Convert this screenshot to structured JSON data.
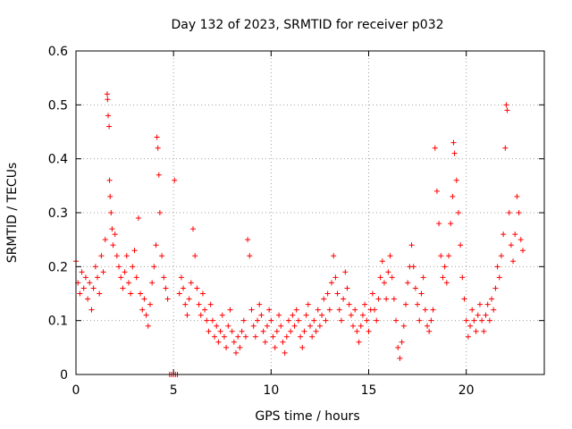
{
  "chart_data": {
    "type": "scatter",
    "title": "Day 132 of 2023, SRMTID for receiver p032",
    "xlabel": "GPS time / hours",
    "ylabel": "SRMTID / TECUs",
    "xlim": [
      0,
      24
    ],
    "ylim": [
      0,
      0.6
    ],
    "x_ticks": [
      0,
      5,
      10,
      15,
      20
    ],
    "x_tick_labels": [
      "0",
      "5",
      "10",
      "15",
      "20"
    ],
    "y_ticks": [
      0,
      0.1,
      0.2,
      0.3,
      0.4,
      0.5,
      0.6
    ],
    "y_tick_labels": [
      "0",
      "0.1",
      "0.2",
      "0.3",
      "0.4",
      "0.5",
      "0.6"
    ],
    "grid": true,
    "marker": "+",
    "color": "#ff0000",
    "series": [
      {
        "name": "SRMTID",
        "points": [
          [
            0.0,
            0.21
          ],
          [
            0.1,
            0.17
          ],
          [
            0.2,
            0.15
          ],
          [
            0.3,
            0.19
          ],
          [
            0.4,
            0.16
          ],
          [
            0.5,
            0.18
          ],
          [
            0.6,
            0.14
          ],
          [
            0.7,
            0.17
          ],
          [
            0.8,
            0.12
          ],
          [
            0.9,
            0.16
          ],
          [
            1.0,
            0.2
          ],
          [
            1.1,
            0.18
          ],
          [
            1.2,
            0.15
          ],
          [
            1.3,
            0.22
          ],
          [
            1.4,
            0.19
          ],
          [
            1.5,
            0.25
          ],
          [
            1.6,
            0.52
          ],
          [
            1.62,
            0.51
          ],
          [
            1.65,
            0.48
          ],
          [
            1.7,
            0.46
          ],
          [
            1.72,
            0.36
          ],
          [
            1.75,
            0.33
          ],
          [
            1.8,
            0.3
          ],
          [
            1.85,
            0.27
          ],
          [
            1.9,
            0.24
          ],
          [
            2.0,
            0.26
          ],
          [
            2.1,
            0.22
          ],
          [
            2.2,
            0.2
          ],
          [
            2.3,
            0.18
          ],
          [
            2.4,
            0.16
          ],
          [
            2.5,
            0.19
          ],
          [
            2.6,
            0.22
          ],
          [
            2.7,
            0.17
          ],
          [
            2.8,
            0.15
          ],
          [
            2.9,
            0.2
          ],
          [
            3.0,
            0.23
          ],
          [
            3.1,
            0.18
          ],
          [
            3.2,
            0.29
          ],
          [
            3.3,
            0.15
          ],
          [
            3.4,
            0.12
          ],
          [
            3.5,
            0.14
          ],
          [
            3.6,
            0.11
          ],
          [
            3.7,
            0.09
          ],
          [
            3.8,
            0.13
          ],
          [
            3.9,
            0.17
          ],
          [
            4.0,
            0.2
          ],
          [
            4.1,
            0.24
          ],
          [
            4.15,
            0.44
          ],
          [
            4.2,
            0.42
          ],
          [
            4.25,
            0.37
          ],
          [
            4.3,
            0.3
          ],
          [
            4.4,
            0.22
          ],
          [
            4.5,
            0.18
          ],
          [
            4.6,
            0.16
          ],
          [
            4.7,
            0.14
          ],
          [
            4.8,
            0.0
          ],
          [
            4.9,
            0.0
          ],
          [
            5.0,
            0.0
          ],
          [
            5.05,
            0.36
          ],
          [
            5.1,
            0.0
          ],
          [
            5.2,
            0.0
          ],
          [
            5.3,
            0.15
          ],
          [
            5.4,
            0.18
          ],
          [
            5.5,
            0.16
          ],
          [
            5.6,
            0.13
          ],
          [
            5.7,
            0.11
          ],
          [
            5.8,
            0.14
          ],
          [
            5.9,
            0.17
          ],
          [
            6.0,
            0.27
          ],
          [
            6.1,
            0.22
          ],
          [
            6.2,
            0.16
          ],
          [
            6.3,
            0.13
          ],
          [
            6.4,
            0.11
          ],
          [
            6.5,
            0.15
          ],
          [
            6.6,
            0.12
          ],
          [
            6.7,
            0.1
          ],
          [
            6.8,
            0.08
          ],
          [
            6.9,
            0.13
          ],
          [
            7.0,
            0.1
          ],
          [
            7.1,
            0.07
          ],
          [
            7.2,
            0.09
          ],
          [
            7.3,
            0.06
          ],
          [
            7.4,
            0.08
          ],
          [
            7.5,
            0.11
          ],
          [
            7.6,
            0.07
          ],
          [
            7.7,
            0.05
          ],
          [
            7.8,
            0.09
          ],
          [
            7.9,
            0.12
          ],
          [
            8.0,
            0.08
          ],
          [
            8.1,
            0.06
          ],
          [
            8.2,
            0.04
          ],
          [
            8.3,
            0.07
          ],
          [
            8.4,
            0.05
          ],
          [
            8.5,
            0.08
          ],
          [
            8.6,
            0.1
          ],
          [
            8.7,
            0.07
          ],
          [
            8.8,
            0.25
          ],
          [
            8.9,
            0.22
          ],
          [
            9.0,
            0.12
          ],
          [
            9.1,
            0.09
          ],
          [
            9.2,
            0.07
          ],
          [
            9.3,
            0.1
          ],
          [
            9.4,
            0.13
          ],
          [
            9.5,
            0.11
          ],
          [
            9.6,
            0.08
          ],
          [
            9.7,
            0.06
          ],
          [
            9.8,
            0.09
          ],
          [
            9.9,
            0.12
          ],
          [
            10.0,
            0.1
          ],
          [
            10.1,
            0.07
          ],
          [
            10.2,
            0.05
          ],
          [
            10.3,
            0.08
          ],
          [
            10.4,
            0.11
          ],
          [
            10.5,
            0.09
          ],
          [
            10.6,
            0.06
          ],
          [
            10.7,
            0.04
          ],
          [
            10.8,
            0.07
          ],
          [
            10.9,
            0.1
          ],
          [
            11.0,
            0.08
          ],
          [
            11.1,
            0.11
          ],
          [
            11.2,
            0.09
          ],
          [
            11.3,
            0.12
          ],
          [
            11.4,
            0.1
          ],
          [
            11.5,
            0.07
          ],
          [
            11.6,
            0.05
          ],
          [
            11.7,
            0.08
          ],
          [
            11.8,
            0.11
          ],
          [
            11.9,
            0.13
          ],
          [
            12.0,
            0.09
          ],
          [
            12.1,
            0.07
          ],
          [
            12.2,
            0.1
          ],
          [
            12.3,
            0.08
          ],
          [
            12.4,
            0.12
          ],
          [
            12.5,
            0.09
          ],
          [
            12.6,
            0.11
          ],
          [
            12.7,
            0.14
          ],
          [
            12.8,
            0.1
          ],
          [
            12.9,
            0.15
          ],
          [
            13.0,
            0.12
          ],
          [
            13.1,
            0.17
          ],
          [
            13.2,
            0.22
          ],
          [
            13.3,
            0.18
          ],
          [
            13.4,
            0.15
          ],
          [
            13.5,
            0.12
          ],
          [
            13.6,
            0.1
          ],
          [
            13.7,
            0.14
          ],
          [
            13.8,
            0.19
          ],
          [
            13.9,
            0.16
          ],
          [
            14.0,
            0.13
          ],
          [
            14.1,
            0.11
          ],
          [
            14.2,
            0.09
          ],
          [
            14.3,
            0.12
          ],
          [
            14.4,
            0.08
          ],
          [
            14.5,
            0.06
          ],
          [
            14.6,
            0.09
          ],
          [
            14.7,
            0.11
          ],
          [
            14.8,
            0.13
          ],
          [
            14.9,
            0.1
          ],
          [
            15.0,
            0.08
          ],
          [
            15.1,
            0.12
          ],
          [
            15.2,
            0.15
          ],
          [
            15.3,
            0.12
          ],
          [
            15.4,
            0.1
          ],
          [
            15.5,
            0.14
          ],
          [
            15.6,
            0.18
          ],
          [
            15.7,
            0.21
          ],
          [
            15.8,
            0.17
          ],
          [
            15.9,
            0.14
          ],
          [
            16.0,
            0.19
          ],
          [
            16.1,
            0.22
          ],
          [
            16.2,
            0.18
          ],
          [
            16.3,
            0.14
          ],
          [
            16.4,
            0.1
          ],
          [
            16.5,
            0.05
          ],
          [
            16.6,
            0.03
          ],
          [
            16.7,
            0.06
          ],
          [
            16.8,
            0.09
          ],
          [
            16.9,
            0.13
          ],
          [
            17.0,
            0.17
          ],
          [
            17.1,
            0.2
          ],
          [
            17.2,
            0.24
          ],
          [
            17.3,
            0.2
          ],
          [
            17.4,
            0.16
          ],
          [
            17.5,
            0.13
          ],
          [
            17.6,
            0.1
          ],
          [
            17.7,
            0.15
          ],
          [
            17.8,
            0.18
          ],
          [
            17.9,
            0.12
          ],
          [
            18.0,
            0.09
          ],
          [
            18.1,
            0.08
          ],
          [
            18.2,
            0.1
          ],
          [
            18.3,
            0.12
          ],
          [
            18.4,
            0.42
          ],
          [
            18.5,
            0.34
          ],
          [
            18.6,
            0.28
          ],
          [
            18.7,
            0.22
          ],
          [
            18.8,
            0.18
          ],
          [
            18.9,
            0.2
          ],
          [
            19.0,
            0.17
          ],
          [
            19.1,
            0.22
          ],
          [
            19.2,
            0.28
          ],
          [
            19.3,
            0.33
          ],
          [
            19.35,
            0.43
          ],
          [
            19.4,
            0.41
          ],
          [
            19.5,
            0.36
          ],
          [
            19.6,
            0.3
          ],
          [
            19.7,
            0.24
          ],
          [
            19.8,
            0.18
          ],
          [
            19.9,
            0.14
          ],
          [
            20.0,
            0.1
          ],
          [
            20.1,
            0.07
          ],
          [
            20.2,
            0.09
          ],
          [
            20.3,
            0.12
          ],
          [
            20.4,
            0.1
          ],
          [
            20.5,
            0.08
          ],
          [
            20.6,
            0.11
          ],
          [
            20.7,
            0.13
          ],
          [
            20.8,
            0.1
          ],
          [
            20.9,
            0.08
          ],
          [
            21.0,
            0.11
          ],
          [
            21.1,
            0.13
          ],
          [
            21.2,
            0.1
          ],
          [
            21.3,
            0.14
          ],
          [
            21.4,
            0.12
          ],
          [
            21.5,
            0.16
          ],
          [
            21.6,
            0.2
          ],
          [
            21.7,
            0.18
          ],
          [
            21.8,
            0.22
          ],
          [
            21.9,
            0.26
          ],
          [
            22.0,
            0.42
          ],
          [
            22.05,
            0.5
          ],
          [
            22.1,
            0.49
          ],
          [
            22.2,
            0.3
          ],
          [
            22.3,
            0.24
          ],
          [
            22.4,
            0.21
          ],
          [
            22.5,
            0.26
          ],
          [
            22.6,
            0.33
          ],
          [
            22.7,
            0.3
          ],
          [
            22.8,
            0.25
          ],
          [
            22.9,
            0.23
          ]
        ]
      }
    ]
  }
}
